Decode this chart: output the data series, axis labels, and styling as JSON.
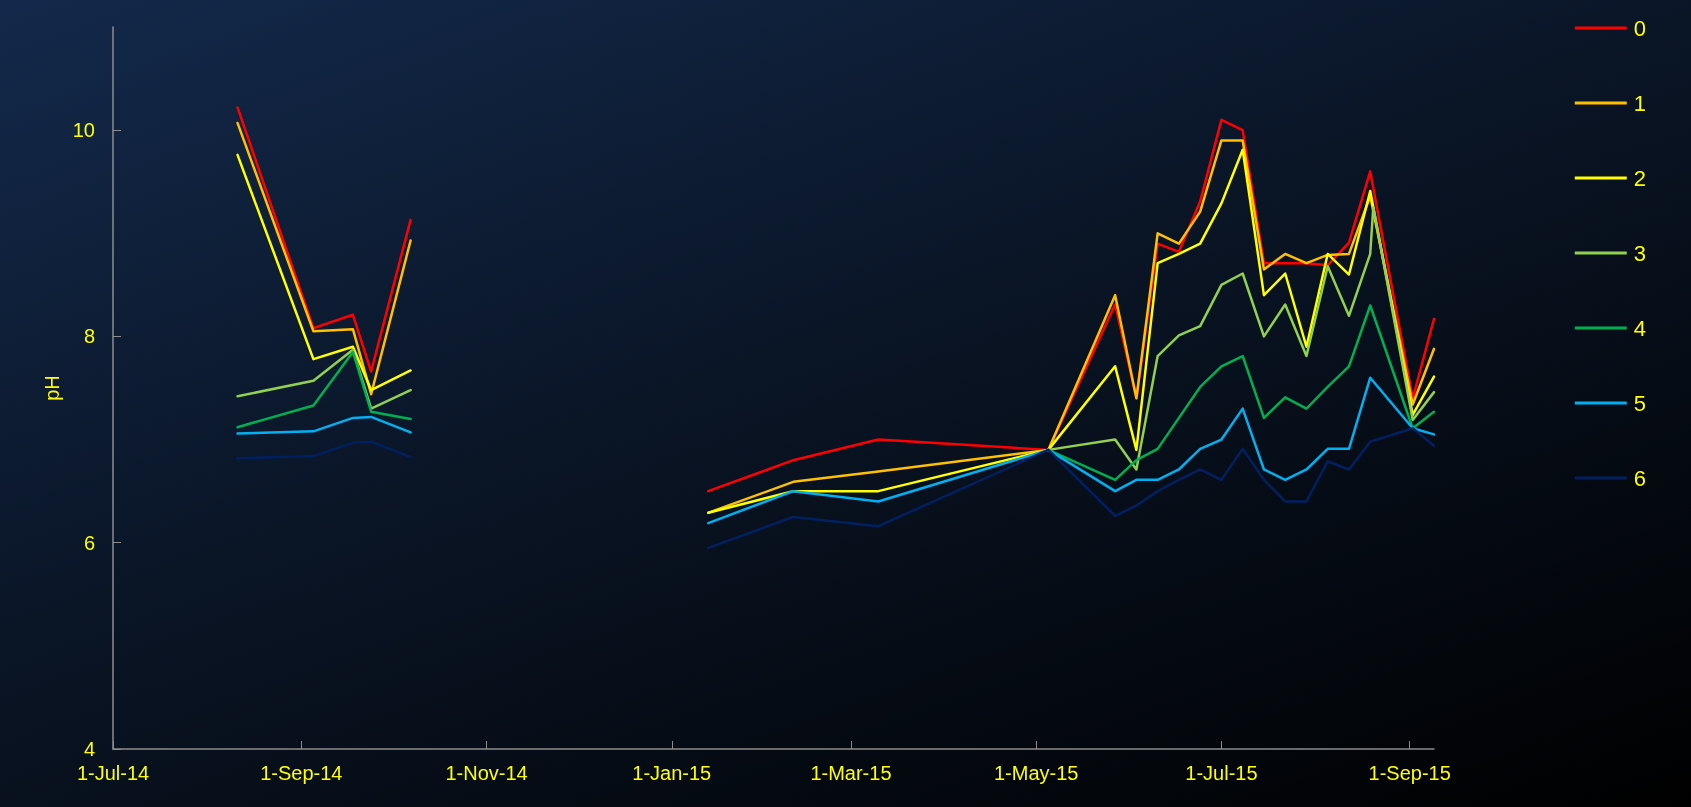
{
  "chart_data": {
    "type": "line",
    "ylabel": "pH",
    "x": [
      "2014-08-11",
      "2014-09-05",
      "2014-09-18",
      "2014-09-24",
      "2014-10-07",
      "2014-11-20",
      "2015-01-13",
      "2015-02-10",
      "2015-03-10",
      "2015-05-05",
      "2015-05-27",
      "2015-06-03",
      "2015-06-10",
      "2015-06-17",
      "2015-06-24",
      "2015-07-01",
      "2015-07-08",
      "2015-07-15",
      "2015-07-22",
      "2015-07-29",
      "2015-08-05",
      "2015-08-12",
      "2015-08-19",
      "2015-09-02",
      "2015-09-09"
    ],
    "series": [
      {
        "name": "0",
        "color": "#ff0000",
        "values": [
          10.22,
          8.08,
          8.21,
          7.66,
          9.13,
          null,
          6.5,
          6.8,
          7.0,
          6.9,
          8.31,
          7.4,
          8.9,
          8.82,
          9.31,
          10.1,
          10.0,
          8.71,
          8.71,
          8.71,
          8.69,
          8.91,
          9.6,
          7.4,
          8.17
        ]
      },
      {
        "name": "1",
        "color": "#ffc000",
        "values": [
          10.07,
          8.05,
          8.07,
          7.44,
          8.93,
          null,
          6.29,
          6.59,
          6.69,
          6.9,
          8.4,
          7.4,
          9.0,
          8.9,
          9.21,
          9.9,
          9.9,
          8.65,
          8.8,
          8.71,
          8.79,
          8.8,
          9.36,
          7.34,
          7.88
        ]
      },
      {
        "name": "2",
        "color": "#ffff00",
        "values": [
          9.76,
          7.78,
          7.9,
          7.48,
          7.67,
          null,
          6.29,
          6.5,
          6.5,
          6.9,
          7.71,
          6.9,
          8.71,
          8.8,
          8.9,
          9.29,
          9.81,
          8.4,
          8.61,
          7.9,
          8.8,
          8.6,
          9.41,
          7.24,
          7.61
        ]
      },
      {
        "name": "3",
        "color": "#92d050",
        "x": [
          "2014-08-11",
          "2014-09-05",
          "2014-09-18",
          "2014-09-24",
          "2014-10-07",
          "2014-11-20",
          "2015-01-13",
          "2015-02-10",
          "2015-03-10",
          "2015-05-05",
          "2015-05-27",
          "2015-06-03",
          "2015-06-10",
          "2015-06-17",
          "2015-06-24",
          "2015-07-01",
          "2015-07-08",
          "2015-07-15",
          "2015-07-22",
          "2015-07-29",
          "2015-08-05",
          "2015-08-12",
          "2015-08-19",
          "2015-08-20",
          "2015-09-02",
          "2015-09-09"
        ],
        "values": [
          7.42,
          7.57,
          7.87,
          7.3,
          7.48,
          null,
          null,
          null,
          null,
          6.9,
          7.0,
          6.71,
          7.81,
          8.01,
          8.1,
          8.5,
          8.61,
          8.0,
          8.31,
          7.81,
          8.68,
          8.2,
          8.8,
          9.25,
          7.19,
          7.46
        ]
      },
      {
        "name": "4",
        "color": "#00b050",
        "values": [
          7.12,
          7.33,
          7.85,
          7.27,
          7.2,
          null,
          null,
          null,
          null,
          6.9,
          6.61,
          6.8,
          6.91,
          7.21,
          7.51,
          7.71,
          7.81,
          7.21,
          7.41,
          7.3,
          7.51,
          7.71,
          8.3,
          7.11,
          7.27
        ]
      },
      {
        "name": "5",
        "color": "#00b0f0",
        "values": [
          7.06,
          7.08,
          7.21,
          7.22,
          7.07,
          null,
          6.19,
          6.5,
          6.4,
          6.9,
          6.5,
          6.61,
          6.61,
          6.71,
          6.91,
          7.0,
          7.3,
          6.71,
          6.61,
          6.71,
          6.91,
          6.91,
          7.6,
          7.11,
          7.05
        ]
      },
      {
        "name": "6",
        "color": "#002060",
        "values": [
          6.82,
          6.84,
          6.97,
          6.98,
          6.83,
          null,
          5.95,
          6.25,
          6.16,
          6.9,
          6.26,
          6.36,
          6.5,
          6.61,
          6.71,
          6.61,
          6.91,
          6.61,
          6.4,
          6.4,
          6.79,
          6.71,
          6.98,
          7.11,
          6.94
        ]
      }
    ],
    "xlim": [
      "2014-07-01",
      "2015-09-09"
    ],
    "xticks": [
      {
        "value": "2014-07-01",
        "label": "1-Jul-14"
      },
      {
        "value": "2014-09-01",
        "label": "1-Sep-14"
      },
      {
        "value": "2014-11-01",
        "label": "1-Nov-14"
      },
      {
        "value": "2015-01-01",
        "label": "1-Jan-15"
      },
      {
        "value": "2015-03-01",
        "label": "1-Mar-15"
      },
      {
        "value": "2015-05-01",
        "label": "1-May-15"
      },
      {
        "value": "2015-07-01",
        "label": "1-Jul-15"
      },
      {
        "value": "2015-09-01",
        "label": "1-Sep-15"
      }
    ],
    "ylim": [
      4,
      11
    ],
    "yticks": [
      4,
      6,
      8,
      10
    ],
    "grid": false,
    "legend": "top right",
    "marker": "none"
  }
}
